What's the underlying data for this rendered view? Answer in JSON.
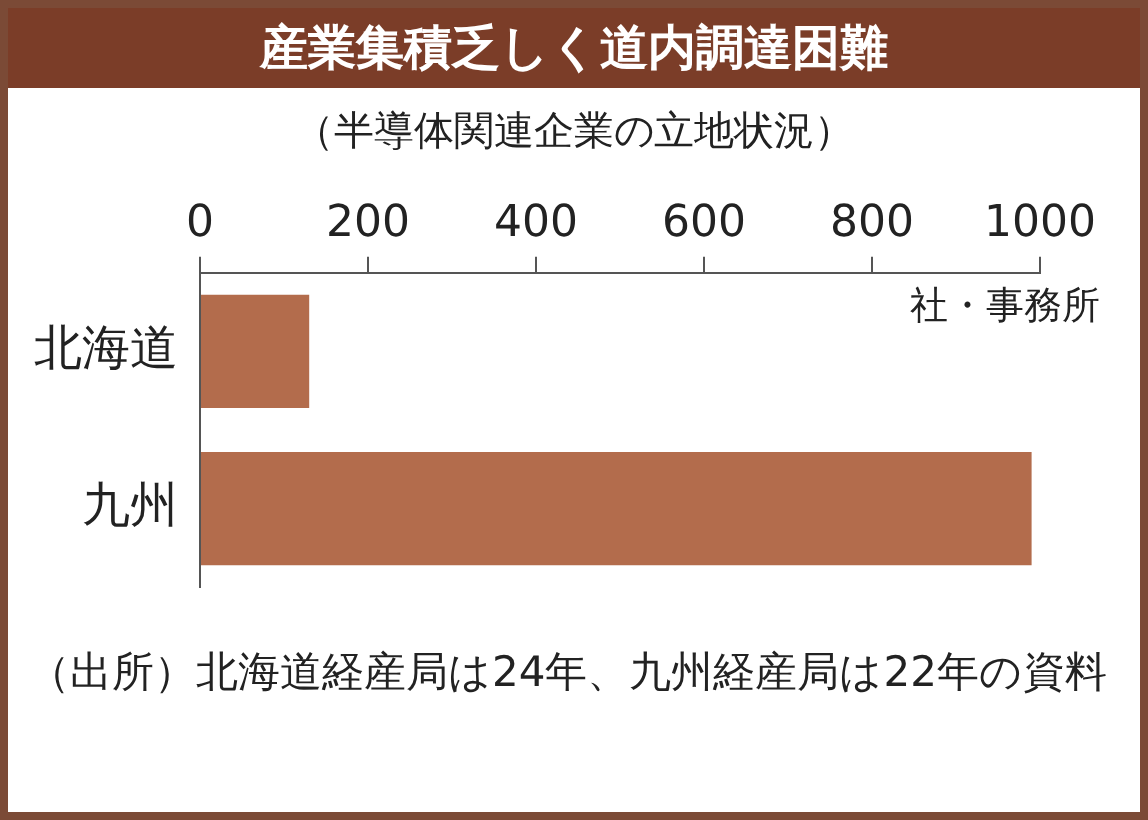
{
  "chart_data": {
    "type": "bar",
    "orientation": "horizontal",
    "title": "産業集積乏しく道内調達困難",
    "subtitle": "（半導体関連企業の立地状況）",
    "xlabel": "社・事務所",
    "categories": [
      "北海道",
      "九州"
    ],
    "values": [
      130,
      990
    ],
    "color": "#b36c4c",
    "xlim": [
      0,
      1000
    ],
    "xticks": [
      0,
      200,
      400,
      600,
      800,
      1000
    ],
    "grid": false,
    "legend": false,
    "annotations": [
      "（出所）北海道経産局は24年、九州経産局は22年の資料"
    ]
  }
}
